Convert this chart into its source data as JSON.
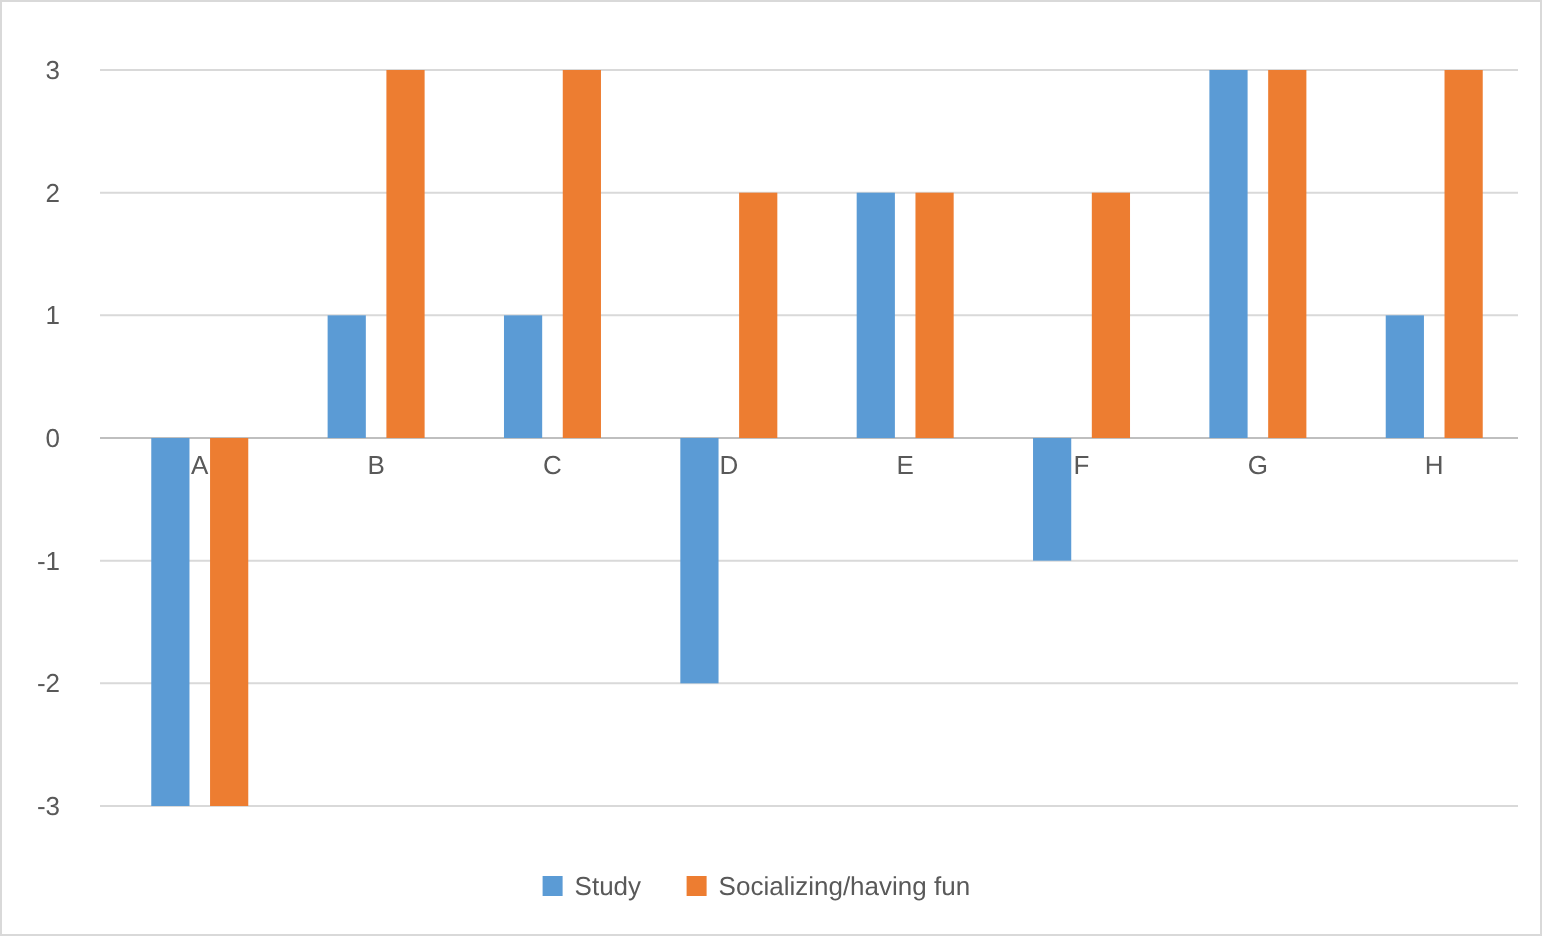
{
  "chart_data": {
    "type": "bar",
    "categories": [
      "A",
      "B",
      "C",
      "D",
      "E",
      "F",
      "G",
      "H"
    ],
    "series": [
      {
        "name": "Study",
        "color": "#5b9bd5",
        "values": [
          -3,
          1,
          1,
          -2,
          2,
          -1,
          3,
          1
        ]
      },
      {
        "name": "Socializing/having fun",
        "color": "#ed7d31",
        "values": [
          -3,
          3,
          3,
          2,
          2,
          2,
          3,
          3
        ]
      }
    ],
    "ylim": [
      -3,
      3
    ],
    "yticks": [
      -3,
      -2,
      -1,
      0,
      1,
      2,
      3
    ],
    "grid": "y",
    "legend": "bottom"
  }
}
